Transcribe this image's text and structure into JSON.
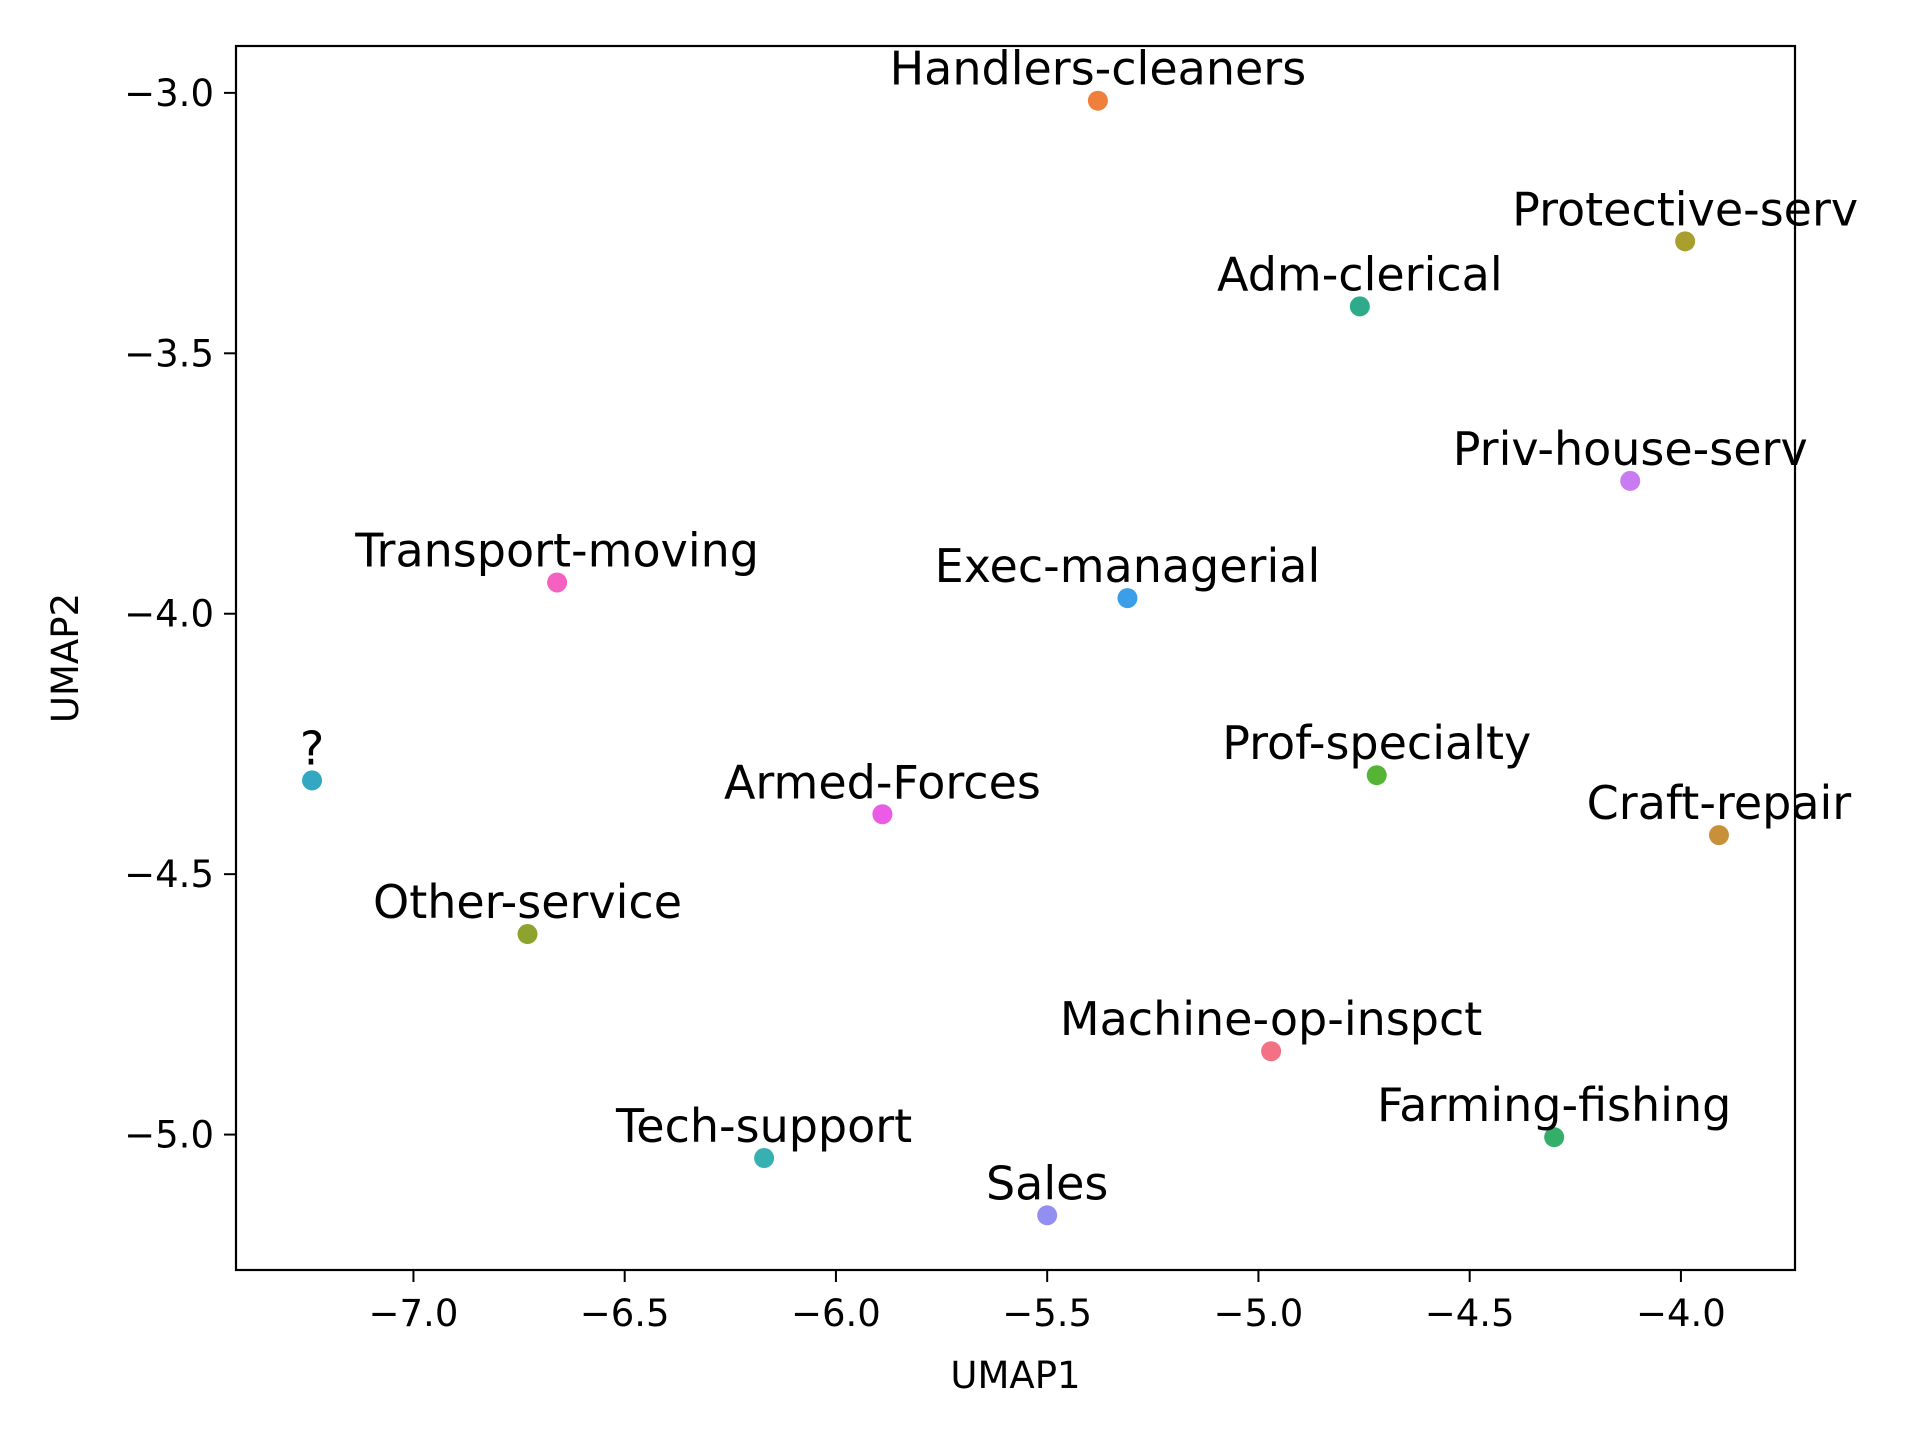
{
  "chart_data": {
    "type": "scatter",
    "title": "",
    "xlabel": "UMAP1",
    "ylabel": "UMAP2",
    "xlim": [
      -7.42,
      -3.73
    ],
    "ylim": [
      -5.26,
      -2.91
    ],
    "grid": false,
    "legend": "none",
    "x_ticks": [
      -7.0,
      -6.5,
      -6.0,
      -5.5,
      -5.0,
      -4.5,
      -4.0
    ],
    "y_ticks": [
      -3.0,
      -3.5,
      -4.0,
      -4.5,
      -5.0
    ],
    "x_tick_labels": [
      "−7.0",
      "−6.5",
      "−6.0",
      "−5.5",
      "−5.0",
      "−4.5",
      "−4.0"
    ],
    "y_tick_labels": [
      "−3.0",
      "−3.5",
      "−4.0",
      "−4.5",
      "−5.0"
    ],
    "points": [
      {
        "label": "Handlers-cleaners",
        "x": -5.38,
        "y": -3.015,
        "color": "#f07f3c"
      },
      {
        "label": "Protective-serv",
        "x": -3.99,
        "y": -3.285,
        "color": "#a89f2e"
      },
      {
        "label": "Adm-clerical",
        "x": -4.76,
        "y": -3.41,
        "color": "#2eab8a"
      },
      {
        "label": "Priv-house-serv",
        "x": -4.12,
        "y": -3.745,
        "color": "#c97cf2"
      },
      {
        "label": "Transport-moving",
        "x": -6.66,
        "y": -3.94,
        "color": "#f561c1"
      },
      {
        "label": "Exec-managerial",
        "x": -5.31,
        "y": -3.97,
        "color": "#3b9ee9"
      },
      {
        "label": "?",
        "x": -7.24,
        "y": -4.32,
        "color": "#33a8c3"
      },
      {
        "label": "Prof-specialty",
        "x": -4.72,
        "y": -4.31,
        "color": "#55b435"
      },
      {
        "label": "Armed-Forces",
        "x": -5.89,
        "y": -4.385,
        "color": "#ec5be6"
      },
      {
        "label": "Craft-repair",
        "x": -3.91,
        "y": -4.425,
        "color": "#c9903a"
      },
      {
        "label": "Other-service",
        "x": -6.73,
        "y": -4.615,
        "color": "#8ca42d"
      },
      {
        "label": "Machine-op-inspct",
        "x": -4.97,
        "y": -4.84,
        "color": "#f27184"
      },
      {
        "label": "Farming-fishing",
        "x": -4.3,
        "y": -5.005,
        "color": "#35ae6a"
      },
      {
        "label": "Tech-support",
        "x": -6.17,
        "y": -5.045,
        "color": "#36b0b0"
      },
      {
        "label": "Sales",
        "x": -5.5,
        "y": -5.155,
        "color": "#918ff0"
      }
    ]
  }
}
